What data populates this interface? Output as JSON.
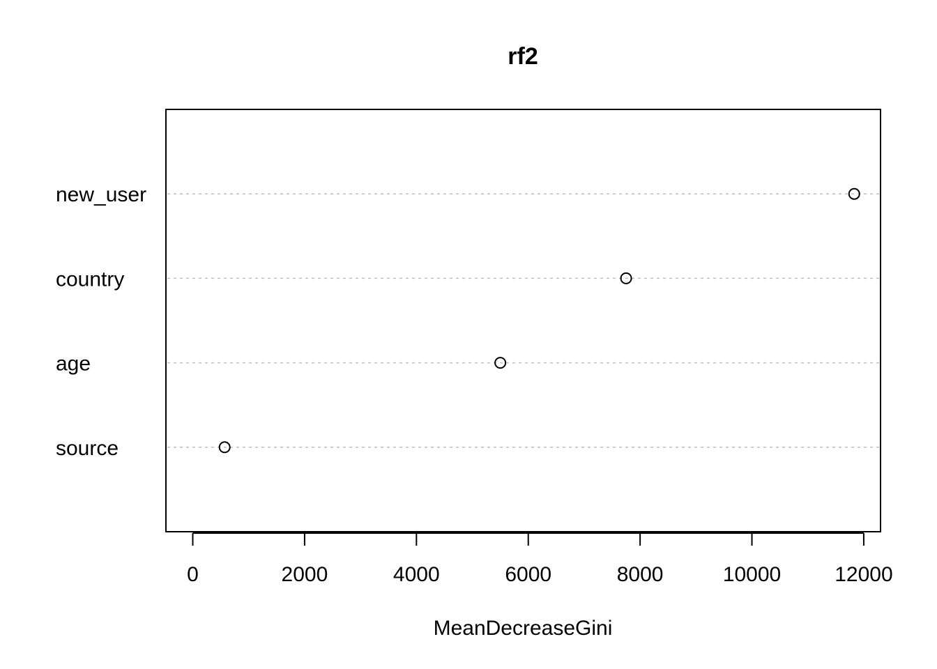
{
  "chart_data": {
    "type": "scatter",
    "title": "rf2",
    "xlabel": "MeanDecreaseGini",
    "ylabel": "",
    "categories": [
      "source",
      "age",
      "country",
      "new_user"
    ],
    "values": [
      570,
      5500,
      7750,
      11830
    ],
    "xlim": [
      -480,
      12300
    ],
    "xticks": [
      0,
      2000,
      4000,
      6000,
      8000,
      10000,
      12000
    ],
    "xtick_labels": [
      "0",
      "2000",
      "4000",
      "6000",
      "8000",
      "10000",
      "12000"
    ],
    "grid": "horizontal dotted lines",
    "marker": "open circle",
    "legend": "none"
  }
}
